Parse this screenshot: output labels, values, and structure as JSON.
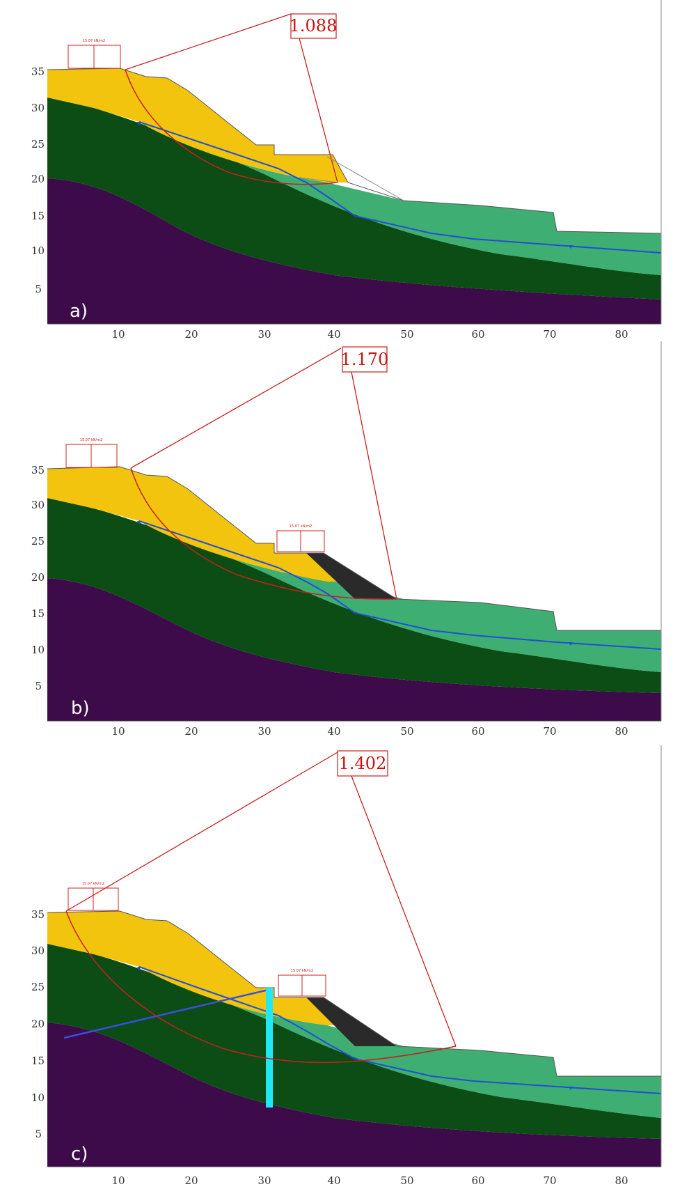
{
  "panels": [
    {
      "label": "a)",
      "fos": "1.088",
      "load_label": "15.07 kN/m2",
      "load2_label": ""
    },
    {
      "label": "b)",
      "fos": "1.170",
      "load_label": "15.07 kN/m2",
      "load2_label": "15.07 kN/m2"
    },
    {
      "label": "c)",
      "fos": "1.402",
      "load_label": "15.07 kN/m2",
      "load2_label": "15.07 kN/m2"
    }
  ],
  "x_ticks": [
    "10",
    "20",
    "30",
    "40",
    "50",
    "60",
    "70",
    "80"
  ],
  "y_ticks": [
    "5",
    "10",
    "15",
    "20",
    "25",
    "30",
    "35"
  ],
  "colors": {
    "bedrock": "#3d0a4a",
    "dark_green": "#0b4d14",
    "light_green": "#3fae72",
    "yellow": "#f2c40d",
    "fill_dark": "#2a2a2a",
    "water_table": "#1f4fd6",
    "slip": "#c62020",
    "pile": "#22e8f5",
    "anchor": "#3a4ee0"
  }
}
